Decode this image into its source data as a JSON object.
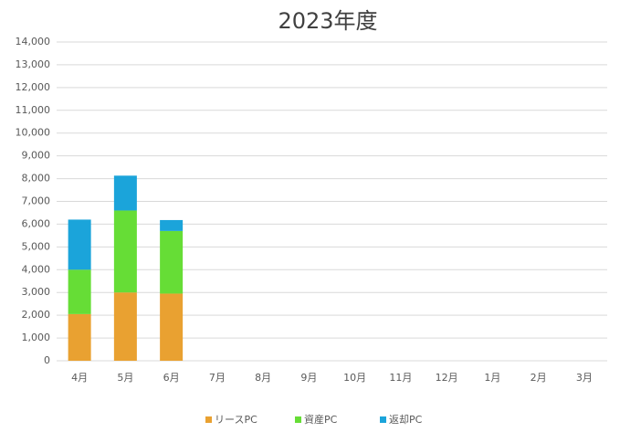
{
  "chart_data": {
    "type": "stacked_bar",
    "title": "2023年度",
    "categories": [
      "4月",
      "5月",
      "6月",
      "7月",
      "8月",
      "9月",
      "10月",
      "11月",
      "12月",
      "1月",
      "2月",
      "3月"
    ],
    "series": [
      {
        "name": "リースPC",
        "color": "#e9a131",
        "values": [
          2050,
          3000,
          2950,
          null,
          null,
          null,
          null,
          null,
          null,
          null,
          null,
          null
        ]
      },
      {
        "name": "資産PC",
        "color": "#66dd36",
        "values": [
          1950,
          3600,
          2750,
          null,
          null,
          null,
          null,
          null,
          null,
          null,
          null,
          null
        ]
      },
      {
        "name": "返却PC",
        "color": "#1ba4da",
        "values": [
          2200,
          1530,
          480,
          null,
          null,
          null,
          null,
          null,
          null,
          null,
          null,
          null
        ]
      }
    ],
    "ylim": [
      0,
      14000
    ],
    "yticks": [
      0,
      {
        "value": 1000,
        "label": "1,000"
      },
      {
        "value": 2000,
        "label": "2,000"
      },
      {
        "value": 3000,
        "label": "3,000"
      },
      {
        "value": 4000,
        "label": "4,000"
      },
      {
        "value": 5000,
        "label": "5,000"
      },
      {
        "value": 6000,
        "label": "6,000"
      },
      {
        "value": 7000,
        "label": "7,000"
      },
      {
        "value": 8000,
        "label": "8,000"
      },
      {
        "value": 9000,
        "label": "9,000"
      },
      {
        "value": 10000,
        "label": "10,000"
      },
      {
        "value": 11000,
        "label": "11,000"
      },
      {
        "value": 12000,
        "label": "12,000"
      },
      {
        "value": 13000,
        "label": "13,000"
      },
      {
        "value": 14000,
        "label": "14,000"
      }
    ],
    "grid": true,
    "legend": "bottom"
  }
}
